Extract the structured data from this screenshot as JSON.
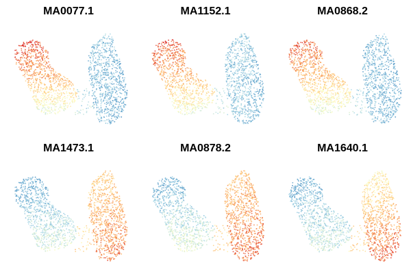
{
  "chart_data": {
    "type": "scatter",
    "description_kind": "small-multiples embedding scatter colored by motif activity",
    "colors": {
      "low": "#2c7bb6",
      "mid_low": "#abd9e9",
      "mid": "#ffffbf",
      "mid_high": "#fdae61",
      "high": "#d7191c",
      "background": "#ffffff"
    },
    "grid": false,
    "axes_visible": false,
    "panels": [
      {
        "title": "MA0077.1",
        "activity": {
          "left_top": 0.92,
          "left_mid": 0.72,
          "left_bottom": 0.4,
          "right_top": 0.2,
          "right_bottom": 0.18
        }
      },
      {
        "title": "MA1152.1",
        "activity": {
          "left_top": 0.9,
          "left_mid": 0.7,
          "left_bottom": 0.42,
          "right_top": 0.22,
          "right_bottom": 0.2
        }
      },
      {
        "title": "MA0868.2",
        "activity": {
          "left_top": 0.88,
          "left_mid": 0.68,
          "left_bottom": 0.38,
          "right_top": 0.18,
          "right_bottom": 0.2
        }
      },
      {
        "title": "MA1473.1",
        "activity": {
          "left_top": 0.12,
          "left_mid": 0.25,
          "left_bottom": 0.4,
          "right_top": 0.62,
          "right_bottom": 0.82
        }
      },
      {
        "title": "MA0878.2",
        "activity": {
          "left_top": 0.14,
          "left_mid": 0.28,
          "left_bottom": 0.42,
          "right_top": 0.66,
          "right_bottom": 0.84
        }
      },
      {
        "title": "MA1640.1",
        "activity": {
          "left_top": 0.14,
          "left_mid": 0.26,
          "left_bottom": 0.35,
          "right_top": 0.5,
          "right_bottom": 0.88
        }
      }
    ]
  }
}
